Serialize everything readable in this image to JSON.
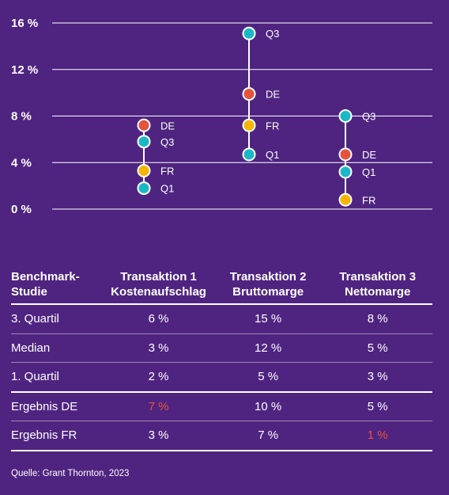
{
  "chart_data": {
    "type": "scatter",
    "y_ticks": [
      "16 %",
      "12 %",
      "8 %",
      "4 %",
      "0 %"
    ],
    "ylim": [
      0,
      16
    ],
    "grid": true,
    "colors": {
      "DE": "#e5533d",
      "FR": "#f7b500",
      "Q": "#1ab7c8"
    },
    "groups": [
      {
        "name": "Transaktion 1",
        "points": [
          {
            "label": "DE",
            "value": 7.2
          },
          {
            "label": "Q3",
            "value": 5.8
          },
          {
            "label": "FR",
            "value": 3.3
          },
          {
            "label": "Q1",
            "value": 1.8
          }
        ]
      },
      {
        "name": "Transaktion 2",
        "points": [
          {
            "label": "Q3",
            "value": 15.1
          },
          {
            "label": "DE",
            "value": 9.9
          },
          {
            "label": "FR",
            "value": 7.2
          },
          {
            "label": "Q1",
            "value": 4.7
          }
        ]
      },
      {
        "name": "Transaktion 3",
        "points": [
          {
            "label": "Q3",
            "value": 8.0
          },
          {
            "label": "DE",
            "value": 4.7
          },
          {
            "label": "Q1",
            "value": 3.2
          },
          {
            "label": "FR",
            "value": 0.8
          }
        ]
      }
    ]
  },
  "table": {
    "headers": [
      "Benchmark-\nStudie",
      "Transaktion 1\nKostenaufschlag",
      "Transaktion 2\nBruttomarge",
      "Transaktion 3\nNettomarge"
    ],
    "rows": [
      [
        "3. Quartil",
        "6 %",
        "15 %",
        "8 %"
      ],
      [
        "Median",
        "3 %",
        "12 %",
        "5 %"
      ],
      [
        "1. Quartil",
        "2 %",
        "5 %",
        "3 %"
      ],
      [
        "Ergebnis DE",
        "7 %",
        "10 %",
        "5 %"
      ],
      [
        "Ergebnis FR",
        "3 %",
        "7 %",
        "1 %"
      ]
    ],
    "highlighted_cells": [
      {
        "row": 3,
        "col": 1
      },
      {
        "row": 4,
        "col": 3
      }
    ],
    "highlight_color": "#e5533d"
  },
  "source": "Quelle: Grant Thornton, 2023"
}
